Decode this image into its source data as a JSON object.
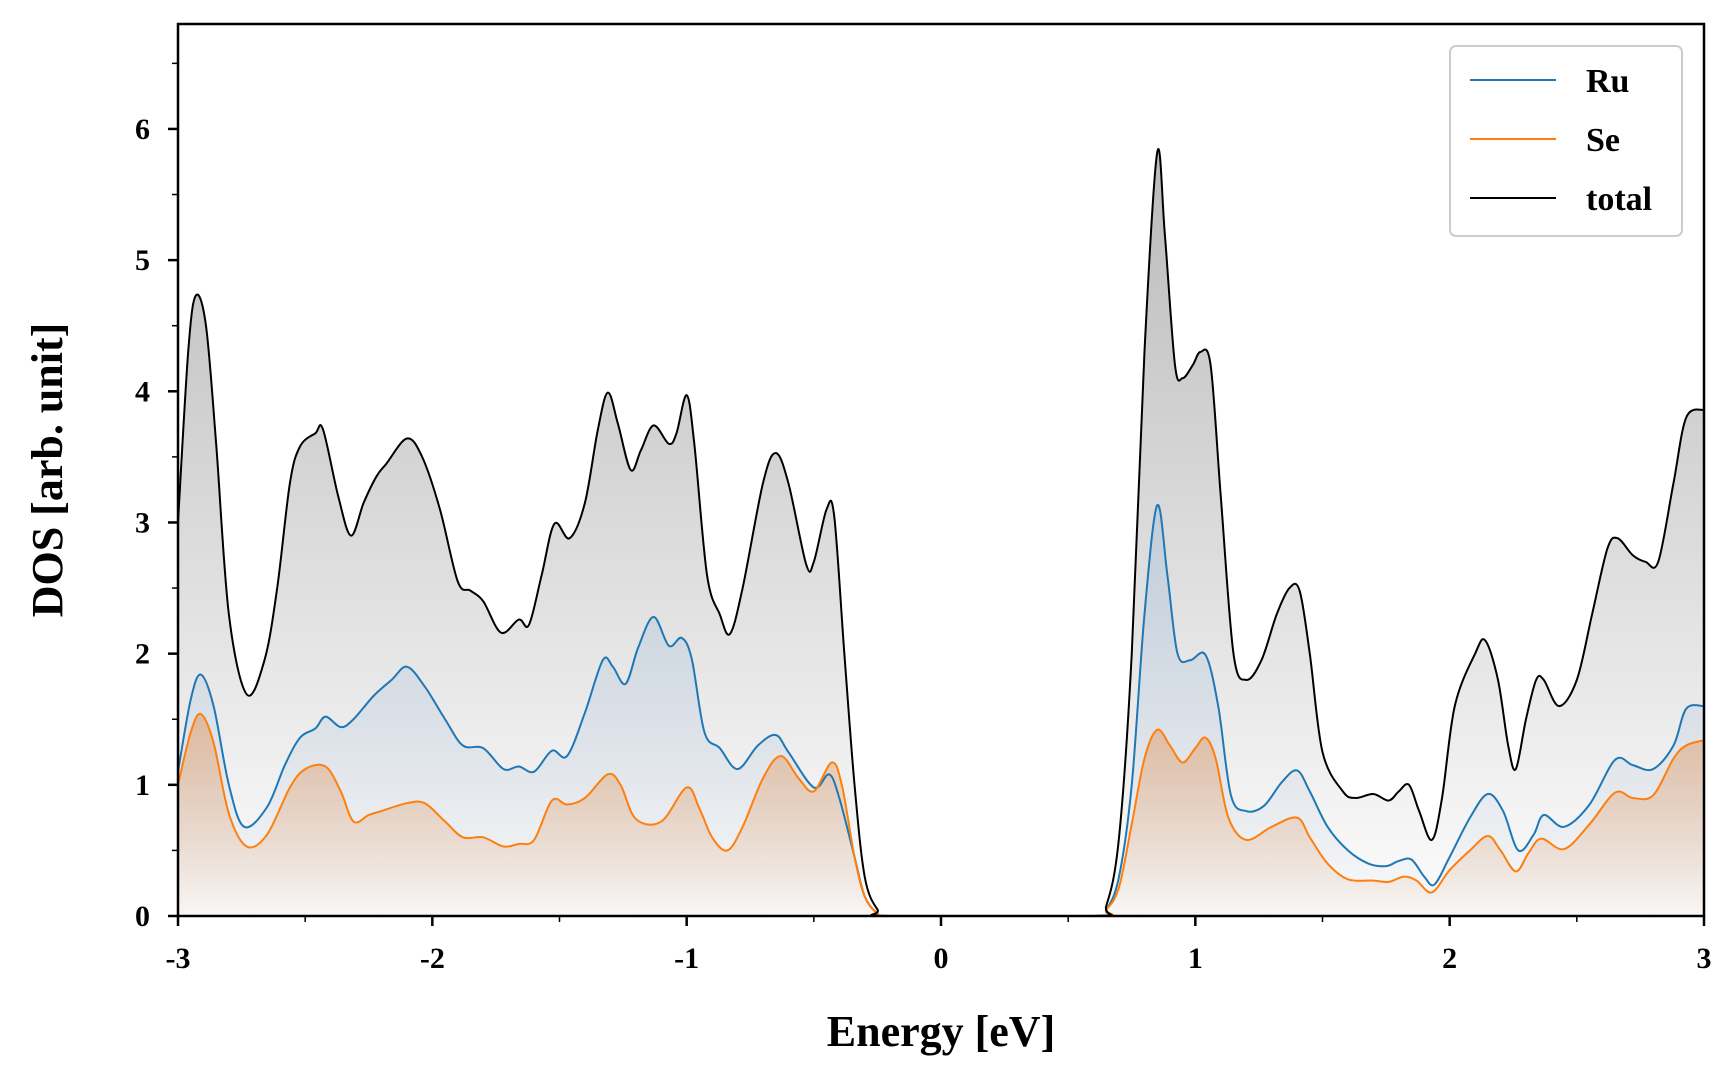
{
  "chart_data": {
    "type": "area",
    "xlabel": "Energy [eV]",
    "ylabel": "DOS [arb. unit]",
    "xlim": [
      -3,
      3
    ],
    "ylim": [
      0,
      6.8
    ],
    "x_ticks": [
      -3,
      -2,
      -1,
      0,
      1,
      2,
      3
    ],
    "x_tick_labels": [
      "-3",
      "-2",
      "-1",
      "0",
      "1",
      "2",
      "3"
    ],
    "y_ticks": [
      0,
      1,
      2,
      3,
      4,
      5,
      6
    ],
    "y_tick_labels": [
      "0",
      "1",
      "2",
      "3",
      "4",
      "5",
      "6"
    ],
    "grid": false,
    "legend_position": "top-right",
    "series": [
      {
        "name": "Ru",
        "color": "#1f77b4",
        "points": [
          [
            -3.0,
            1.1
          ],
          [
            -2.95,
            1.65
          ],
          [
            -2.91,
            1.84
          ],
          [
            -2.86,
            1.6
          ],
          [
            -2.8,
            1.0
          ],
          [
            -2.74,
            0.68
          ],
          [
            -2.65,
            0.83
          ],
          [
            -2.58,
            1.15
          ],
          [
            -2.52,
            1.36
          ],
          [
            -2.46,
            1.43
          ],
          [
            -2.42,
            1.52
          ],
          [
            -2.36,
            1.44
          ],
          [
            -2.31,
            1.5
          ],
          [
            -2.23,
            1.68
          ],
          [
            -2.16,
            1.8
          ],
          [
            -2.1,
            1.9
          ],
          [
            -2.03,
            1.75
          ],
          [
            -1.95,
            1.5
          ],
          [
            -1.88,
            1.3
          ],
          [
            -1.8,
            1.28
          ],
          [
            -1.72,
            1.12
          ],
          [
            -1.66,
            1.14
          ],
          [
            -1.6,
            1.1
          ],
          [
            -1.53,
            1.26
          ],
          [
            -1.47,
            1.22
          ],
          [
            -1.4,
            1.55
          ],
          [
            -1.33,
            1.95
          ],
          [
            -1.29,
            1.9
          ],
          [
            -1.24,
            1.77
          ],
          [
            -1.19,
            2.05
          ],
          [
            -1.13,
            2.28
          ],
          [
            -1.07,
            2.06
          ],
          [
            -1.02,
            2.12
          ],
          [
            -0.98,
            1.96
          ],
          [
            -0.93,
            1.4
          ],
          [
            -0.87,
            1.28
          ],
          [
            -0.8,
            1.12
          ],
          [
            -0.72,
            1.3
          ],
          [
            -0.65,
            1.38
          ],
          [
            -0.6,
            1.25
          ],
          [
            -0.5,
            0.98
          ],
          [
            -0.44,
            1.08
          ],
          [
            -0.4,
            0.9
          ],
          [
            -0.34,
            0.45
          ],
          [
            -0.3,
            0.15
          ],
          [
            -0.25,
            0.02
          ],
          [
            -0.2,
            0.0
          ],
          [
            0.6,
            0.0
          ],
          [
            0.65,
            0.05
          ],
          [
            0.7,
            0.3
          ],
          [
            0.75,
            1.0
          ],
          [
            0.8,
            2.3
          ],
          [
            0.85,
            3.13
          ],
          [
            0.89,
            2.6
          ],
          [
            0.93,
            2.0
          ],
          [
            0.98,
            1.95
          ],
          [
            1.04,
            1.99
          ],
          [
            1.09,
            1.6
          ],
          [
            1.14,
            0.92
          ],
          [
            1.2,
            0.8
          ],
          [
            1.27,
            0.84
          ],
          [
            1.34,
            1.02
          ],
          [
            1.4,
            1.11
          ],
          [
            1.45,
            0.95
          ],
          [
            1.52,
            0.68
          ],
          [
            1.6,
            0.5
          ],
          [
            1.68,
            0.4
          ],
          [
            1.75,
            0.38
          ],
          [
            1.8,
            0.42
          ],
          [
            1.85,
            0.43
          ],
          [
            1.9,
            0.3
          ],
          [
            1.94,
            0.24
          ],
          [
            2.0,
            0.45
          ],
          [
            2.08,
            0.75
          ],
          [
            2.15,
            0.93
          ],
          [
            2.21,
            0.8
          ],
          [
            2.27,
            0.5
          ],
          [
            2.33,
            0.62
          ],
          [
            2.37,
            0.77
          ],
          [
            2.45,
            0.68
          ],
          [
            2.55,
            0.85
          ],
          [
            2.65,
            1.19
          ],
          [
            2.72,
            1.15
          ],
          [
            2.8,
            1.12
          ],
          [
            2.88,
            1.3
          ],
          [
            2.93,
            1.58
          ],
          [
            3.0,
            1.6
          ]
        ]
      },
      {
        "name": "Se",
        "color": "#ff7f0e",
        "points": [
          [
            -3.0,
            1.0
          ],
          [
            -2.95,
            1.4
          ],
          [
            -2.91,
            1.54
          ],
          [
            -2.86,
            1.32
          ],
          [
            -2.8,
            0.78
          ],
          [
            -2.73,
            0.53
          ],
          [
            -2.65,
            0.62
          ],
          [
            -2.56,
            0.98
          ],
          [
            -2.5,
            1.12
          ],
          [
            -2.42,
            1.14
          ],
          [
            -2.36,
            0.95
          ],
          [
            -2.31,
            0.72
          ],
          [
            -2.25,
            0.77
          ],
          [
            -2.2,
            0.8
          ],
          [
            -2.1,
            0.86
          ],
          [
            -2.03,
            0.86
          ],
          [
            -1.95,
            0.72
          ],
          [
            -1.88,
            0.6
          ],
          [
            -1.8,
            0.6
          ],
          [
            -1.72,
            0.53
          ],
          [
            -1.66,
            0.55
          ],
          [
            -1.6,
            0.58
          ],
          [
            -1.53,
            0.88
          ],
          [
            -1.47,
            0.85
          ],
          [
            -1.4,
            0.9
          ],
          [
            -1.31,
            1.08
          ],
          [
            -1.26,
            1.0
          ],
          [
            -1.2,
            0.74
          ],
          [
            -1.1,
            0.72
          ],
          [
            -1.0,
            0.98
          ],
          [
            -0.95,
            0.82
          ],
          [
            -0.9,
            0.6
          ],
          [
            -0.84,
            0.5
          ],
          [
            -0.78,
            0.68
          ],
          [
            -0.7,
            1.05
          ],
          [
            -0.63,
            1.22
          ],
          [
            -0.56,
            1.05
          ],
          [
            -0.5,
            0.95
          ],
          [
            -0.43,
            1.17
          ],
          [
            -0.39,
            1.0
          ],
          [
            -0.34,
            0.45
          ],
          [
            -0.3,
            0.15
          ],
          [
            -0.25,
            0.02
          ],
          [
            -0.2,
            0.0
          ],
          [
            0.6,
            0.0
          ],
          [
            0.65,
            0.05
          ],
          [
            0.7,
            0.22
          ],
          [
            0.75,
            0.7
          ],
          [
            0.8,
            1.2
          ],
          [
            0.85,
            1.42
          ],
          [
            0.9,
            1.3
          ],
          [
            0.95,
            1.17
          ],
          [
            1.0,
            1.28
          ],
          [
            1.04,
            1.36
          ],
          [
            1.08,
            1.2
          ],
          [
            1.13,
            0.75
          ],
          [
            1.2,
            0.58
          ],
          [
            1.3,
            0.68
          ],
          [
            1.4,
            0.75
          ],
          [
            1.45,
            0.6
          ],
          [
            1.52,
            0.4
          ],
          [
            1.6,
            0.28
          ],
          [
            1.7,
            0.27
          ],
          [
            1.76,
            0.26
          ],
          [
            1.82,
            0.3
          ],
          [
            1.87,
            0.27
          ],
          [
            1.93,
            0.18
          ],
          [
            2.0,
            0.35
          ],
          [
            2.08,
            0.5
          ],
          [
            2.15,
            0.61
          ],
          [
            2.2,
            0.5
          ],
          [
            2.26,
            0.34
          ],
          [
            2.31,
            0.48
          ],
          [
            2.36,
            0.59
          ],
          [
            2.45,
            0.51
          ],
          [
            2.55,
            0.7
          ],
          [
            2.65,
            0.94
          ],
          [
            2.72,
            0.9
          ],
          [
            2.8,
            0.92
          ],
          [
            2.88,
            1.2
          ],
          [
            2.93,
            1.3
          ],
          [
            3.0,
            1.34
          ]
        ]
      },
      {
        "name": "total",
        "color": "#000000",
        "points": [
          [
            -3.0,
            3.0
          ],
          [
            -2.96,
            4.3
          ],
          [
            -2.93,
            4.73
          ],
          [
            -2.89,
            4.5
          ],
          [
            -2.85,
            3.6
          ],
          [
            -2.8,
            2.3
          ],
          [
            -2.73,
            1.69
          ],
          [
            -2.66,
            1.95
          ],
          [
            -2.61,
            2.5
          ],
          [
            -2.56,
            3.3
          ],
          [
            -2.52,
            3.58
          ],
          [
            -2.46,
            3.68
          ],
          [
            -2.43,
            3.71
          ],
          [
            -2.37,
            3.2
          ],
          [
            -2.32,
            2.9
          ],
          [
            -2.27,
            3.15
          ],
          [
            -2.22,
            3.35
          ],
          [
            -2.18,
            3.45
          ],
          [
            -2.1,
            3.64
          ],
          [
            -2.04,
            3.5
          ],
          [
            -1.97,
            3.1
          ],
          [
            -1.9,
            2.55
          ],
          [
            -1.85,
            2.48
          ],
          [
            -1.8,
            2.4
          ],
          [
            -1.73,
            2.16
          ],
          [
            -1.66,
            2.26
          ],
          [
            -1.62,
            2.22
          ],
          [
            -1.57,
            2.6
          ],
          [
            -1.52,
            2.99
          ],
          [
            -1.46,
            2.88
          ],
          [
            -1.4,
            3.15
          ],
          [
            -1.35,
            3.7
          ],
          [
            -1.31,
            3.99
          ],
          [
            -1.27,
            3.75
          ],
          [
            -1.22,
            3.4
          ],
          [
            -1.18,
            3.55
          ],
          [
            -1.13,
            3.74
          ],
          [
            -1.07,
            3.6
          ],
          [
            -1.04,
            3.68
          ],
          [
            -1.0,
            3.97
          ],
          [
            -0.97,
            3.6
          ],
          [
            -0.92,
            2.6
          ],
          [
            -0.87,
            2.3
          ],
          [
            -0.83,
            2.15
          ],
          [
            -0.78,
            2.5
          ],
          [
            -0.7,
            3.3
          ],
          [
            -0.65,
            3.53
          ],
          [
            -0.6,
            3.3
          ],
          [
            -0.53,
            2.68
          ],
          [
            -0.5,
            2.7
          ],
          [
            -0.45,
            3.1
          ],
          [
            -0.42,
            3.05
          ],
          [
            -0.38,
            2.0
          ],
          [
            -0.34,
            1.0
          ],
          [
            -0.3,
            0.3
          ],
          [
            -0.25,
            0.05
          ],
          [
            -0.2,
            0.0
          ],
          [
            0.6,
            0.0
          ],
          [
            0.65,
            0.08
          ],
          [
            0.7,
            0.6
          ],
          [
            0.75,
            2.0
          ],
          [
            0.8,
            4.3
          ],
          [
            0.85,
            5.82
          ],
          [
            0.88,
            5.2
          ],
          [
            0.92,
            4.2
          ],
          [
            0.95,
            4.1
          ],
          [
            0.99,
            4.2
          ],
          [
            1.02,
            4.3
          ],
          [
            1.06,
            4.2
          ],
          [
            1.1,
            3.2
          ],
          [
            1.15,
            2.0
          ],
          [
            1.2,
            1.8
          ],
          [
            1.26,
            1.95
          ],
          [
            1.32,
            2.3
          ],
          [
            1.37,
            2.5
          ],
          [
            1.41,
            2.48
          ],
          [
            1.45,
            2.0
          ],
          [
            1.5,
            1.25
          ],
          [
            1.58,
            0.95
          ],
          [
            1.63,
            0.9
          ],
          [
            1.7,
            0.93
          ],
          [
            1.76,
            0.88
          ],
          [
            1.8,
            0.95
          ],
          [
            1.84,
            1.0
          ],
          [
            1.88,
            0.8
          ],
          [
            1.93,
            0.58
          ],
          [
            1.97,
            0.9
          ],
          [
            2.02,
            1.6
          ],
          [
            2.1,
            2.0
          ],
          [
            2.14,
            2.1
          ],
          [
            2.19,
            1.8
          ],
          [
            2.23,
            1.3
          ],
          [
            2.26,
            1.12
          ],
          [
            2.3,
            1.5
          ],
          [
            2.34,
            1.8
          ],
          [
            2.37,
            1.8
          ],
          [
            2.43,
            1.6
          ],
          [
            2.5,
            1.8
          ],
          [
            2.56,
            2.3
          ],
          [
            2.62,
            2.8
          ],
          [
            2.66,
            2.88
          ],
          [
            2.72,
            2.75
          ],
          [
            2.77,
            2.7
          ],
          [
            2.82,
            2.7
          ],
          [
            2.88,
            3.3
          ],
          [
            2.93,
            3.8
          ],
          [
            3.0,
            3.86
          ]
        ]
      }
    ]
  }
}
